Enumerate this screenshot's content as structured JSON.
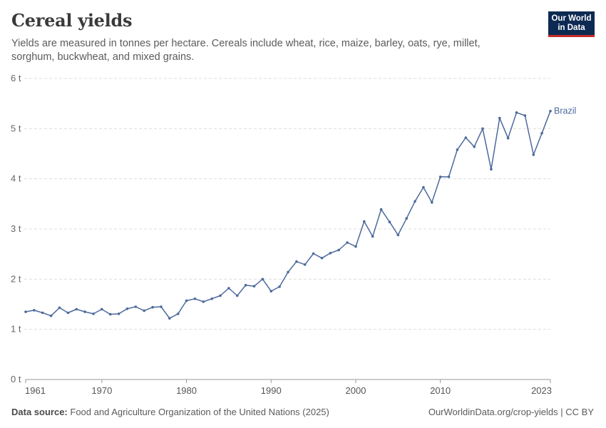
{
  "header": {
    "title": "Cereal yields",
    "subtitle": "Yields are measured in tonnes per hectare. Cereals include wheat, rice, maize, barley, oats, rye, millet, sorghum, buckwheat, and mixed grains."
  },
  "logo": {
    "line1": "Our World",
    "line2": "in Data"
  },
  "footer": {
    "source_label": "Data source:",
    "source_text": "Food and Agriculture Organization of the United Nations (2025)",
    "url_license": "OurWorldinData.org/crop-yields | CC BY"
  },
  "colors": {
    "series": "#4c6a9c",
    "grid": "#dddddd",
    "axis": "#999999"
  },
  "chart_data": {
    "type": "line",
    "title": "Cereal yields",
    "xlabel": "",
    "ylabel": "",
    "xlim": [
      1961,
      2023
    ],
    "ylim": [
      0,
      6
    ],
    "x_ticks": [
      1961,
      1970,
      1980,
      1990,
      2000,
      2010,
      2023
    ],
    "y_ticks": [
      0,
      1,
      2,
      3,
      4,
      5,
      6
    ],
    "y_tick_labels": [
      "0 t",
      "1 t",
      "2 t",
      "3 t",
      "4 t",
      "5 t",
      "6 t"
    ],
    "grid": "horizontal dashed",
    "series": [
      {
        "name": "Brazil",
        "x": [
          1961,
          1962,
          1963,
          1964,
          1965,
          1966,
          1967,
          1968,
          1969,
          1970,
          1971,
          1972,
          1973,
          1974,
          1975,
          1976,
          1977,
          1978,
          1979,
          1980,
          1981,
          1982,
          1983,
          1984,
          1985,
          1986,
          1987,
          1988,
          1989,
          1990,
          1991,
          1992,
          1993,
          1994,
          1995,
          1996,
          1997,
          1998,
          1999,
          2000,
          2001,
          2002,
          2003,
          2004,
          2005,
          2006,
          2007,
          2008,
          2009,
          2010,
          2011,
          2012,
          2013,
          2014,
          2015,
          2016,
          2017,
          2018,
          2019,
          2020,
          2021,
          2022,
          2023
        ],
        "values": [
          1.35,
          1.38,
          1.33,
          1.27,
          1.43,
          1.33,
          1.4,
          1.35,
          1.31,
          1.4,
          1.3,
          1.31,
          1.41,
          1.45,
          1.37,
          1.44,
          1.45,
          1.22,
          1.31,
          1.57,
          1.61,
          1.55,
          1.61,
          1.67,
          1.82,
          1.67,
          1.88,
          1.86,
          2.0,
          1.76,
          1.85,
          2.14,
          2.35,
          2.29,
          2.51,
          2.42,
          2.52,
          2.58,
          2.73,
          2.65,
          3.15,
          2.85,
          3.39,
          3.14,
          2.88,
          3.21,
          3.55,
          3.83,
          3.53,
          4.04,
          4.04,
          4.58,
          4.82,
          4.64,
          5.0,
          4.19,
          5.21,
          4.81,
          5.32,
          5.26,
          4.48,
          4.91,
          5.35
        ]
      }
    ]
  }
}
